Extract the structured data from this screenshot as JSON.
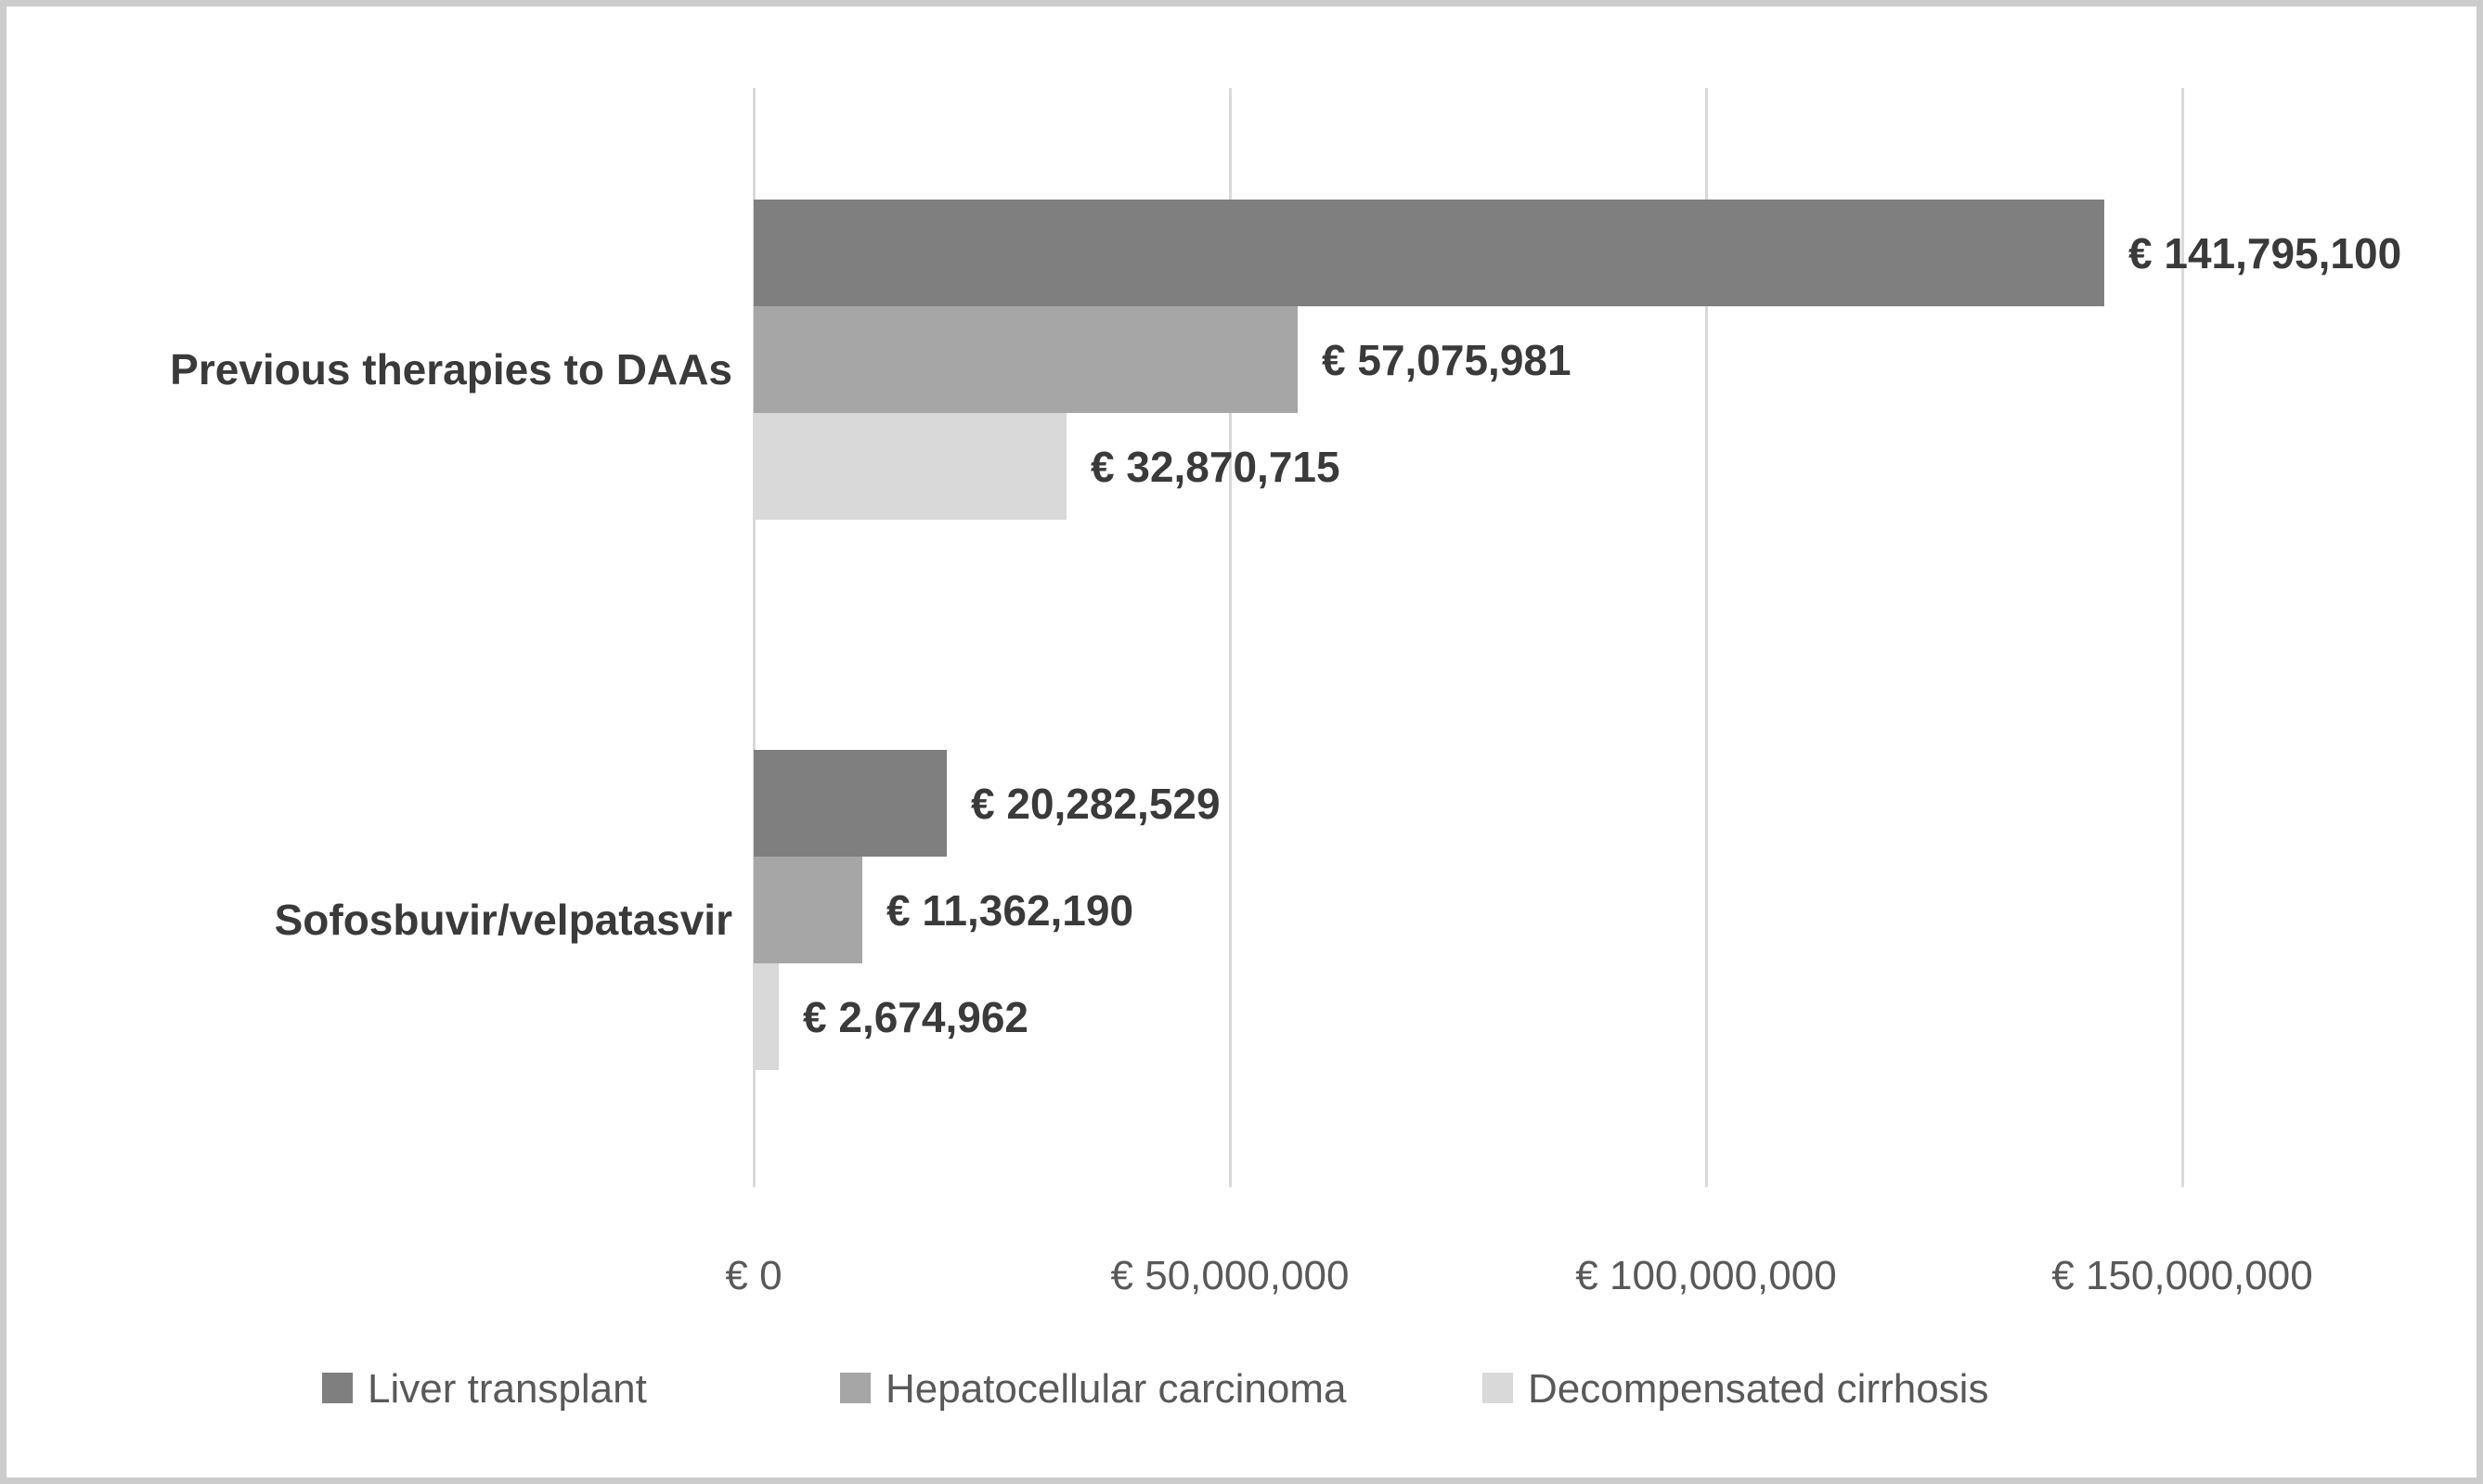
{
  "chart_data": {
    "type": "bar",
    "orientation": "horizontal",
    "title": "",
    "categories": [
      "Previous therapies to DAAs",
      "Sofosbuvir/velpatasvir"
    ],
    "series": [
      {
        "name": "Liver transplant",
        "color": "#7f7f7f",
        "values": [
          141795100,
          20282529
        ],
        "labels": [
          "€ 141,795,100",
          "€ 20,282,529"
        ]
      },
      {
        "name": "Hepatocellular carcinoma",
        "color": "#a6a6a6",
        "values": [
          57075981,
          11362190
        ],
        "labels": [
          "€ 57,075,981",
          "€ 11,362,190"
        ]
      },
      {
        "name": "Decompensated cirrhosis",
        "color": "#d9d9d9",
        "values": [
          32870715,
          2674962
        ],
        "labels": [
          "€ 32,870,715",
          "€ 2,674,962"
        ]
      }
    ],
    "x_axis": {
      "min": 0,
      "max": 150000000,
      "tick_step": 50000000,
      "tick_labels": [
        "€ 0",
        "€ 50,000,000",
        "€ 100,000,000",
        "€ 150,000,000"
      ]
    },
    "legend": {
      "position": "bottom",
      "entries": [
        "Liver transplant",
        "Hepatocellular carcinoma",
        "Decompensated cirrhosis"
      ]
    },
    "gridlines": {
      "vertical": true,
      "color": "#d9d9d9"
    }
  },
  "styles": {
    "data_label_color": "#3a3a3a",
    "category_label_color": "#3a3a3a",
    "axis_label_color": "#595959",
    "legend_label_color": "#595959",
    "border_color": "#cccccc",
    "background": "#ffffff"
  }
}
